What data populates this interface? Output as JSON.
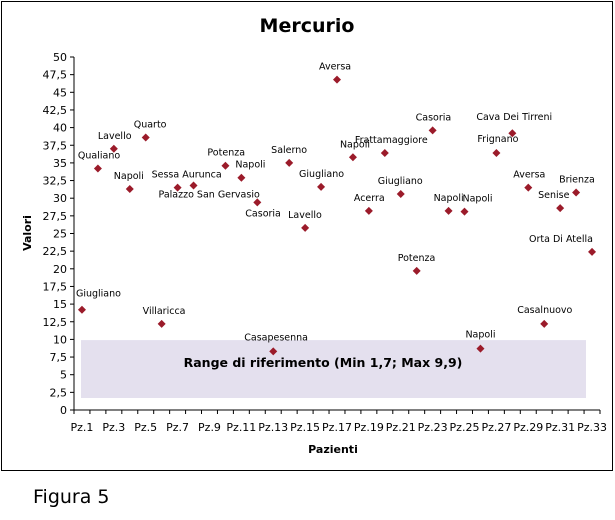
{
  "figure_caption": "Figura 5",
  "chart_data": {
    "type": "scatter",
    "title": "Mercurio",
    "xlabel": "Pazienti",
    "ylabel": "Valori",
    "ylim": [
      0,
      50
    ],
    "ytick_step": 2.5,
    "yticks": [
      "0",
      "2,5",
      "5",
      "7,5",
      "10",
      "12,5",
      "15",
      "17,5",
      "20",
      "22,5",
      "25",
      "27,5",
      "30",
      "32,5",
      "35",
      "37,5",
      "40",
      "42,5",
      "45",
      "47,5",
      "50"
    ],
    "xticks": [
      "Pz.1",
      "Pz.3",
      "Pz.5",
      "Pz.7",
      "Pz.9",
      "Pz.11",
      "Pz.13",
      "Pz.15",
      "Pz.17",
      "Pz.19",
      "Pz.21",
      "Pz.23",
      "Pz.25",
      "Pz.27",
      "Pz.29",
      "Pz.31",
      "Pz.33"
    ],
    "grid": false,
    "marker_color": "#9b1b2a",
    "reference_range": {
      "label": "Range di riferimento  (Min 1,7; Max 9,9)",
      "min": 1.7,
      "max": 9.9,
      "color": "#e4e0ee"
    },
    "points": [
      {
        "x": 1,
        "y": 14.2,
        "label": "Giugliano"
      },
      {
        "x": 2,
        "y": 34.2,
        "label": "Qualiano"
      },
      {
        "x": 3,
        "y": 37.0,
        "label": "Lavello"
      },
      {
        "x": 4,
        "y": 31.3,
        "label": "Napoli"
      },
      {
        "x": 5,
        "y": 38.6,
        "label": "Quarto"
      },
      {
        "x": 6,
        "y": 12.2,
        "label": "Villaricca"
      },
      {
        "x": 7,
        "y": 31.5,
        "label": "Sessa Aurunca"
      },
      {
        "x": 8,
        "y": 31.8,
        "label": "Palazzo San Gervasio"
      },
      {
        "x": 10,
        "y": 34.6,
        "label": "Potenza"
      },
      {
        "x": 11,
        "y": 32.9,
        "label": "Napoli"
      },
      {
        "x": 12,
        "y": 29.4,
        "label": "Casoria"
      },
      {
        "x": 13,
        "y": 8.3,
        "label": "Casapesenna"
      },
      {
        "x": 14,
        "y": 35.0,
        "label": "Salerno"
      },
      {
        "x": 15,
        "y": 25.8,
        "label": "Lavello"
      },
      {
        "x": 16,
        "y": 31.6,
        "label": "Giugliano"
      },
      {
        "x": 17,
        "y": 46.8,
        "label": "Aversa"
      },
      {
        "x": 18,
        "y": 35.8,
        "label": "Napoli"
      },
      {
        "x": 19,
        "y": 28.2,
        "label": "Acerra"
      },
      {
        "x": 20,
        "y": 36.4,
        "label": "Frattamaggiore"
      },
      {
        "x": 21,
        "y": 30.6,
        "label": "Giugliano"
      },
      {
        "x": 22,
        "y": 19.7,
        "label": "Potenza"
      },
      {
        "x": 23,
        "y": 39.6,
        "label": "Casoria"
      },
      {
        "x": 24,
        "y": 28.2,
        "label": "Napoli"
      },
      {
        "x": 25,
        "y": 28.1,
        "label": "Napoli"
      },
      {
        "x": 26,
        "y": 8.7,
        "label": "Napoli"
      },
      {
        "x": 27,
        "y": 36.4,
        "label": "Frignano"
      },
      {
        "x": 28,
        "y": 39.2,
        "label": "Cava Dei Tirreni"
      },
      {
        "x": 29,
        "y": 31.5,
        "label": "Aversa"
      },
      {
        "x": 30,
        "y": 12.2,
        "label": "Casalnuovo"
      },
      {
        "x": 31,
        "y": 28.6,
        "label": "Senise"
      },
      {
        "x": 32,
        "y": 30.8,
        "label": "Brienza"
      },
      {
        "x": 33,
        "y": 22.4,
        "label": "Orta Di Atella"
      }
    ]
  }
}
